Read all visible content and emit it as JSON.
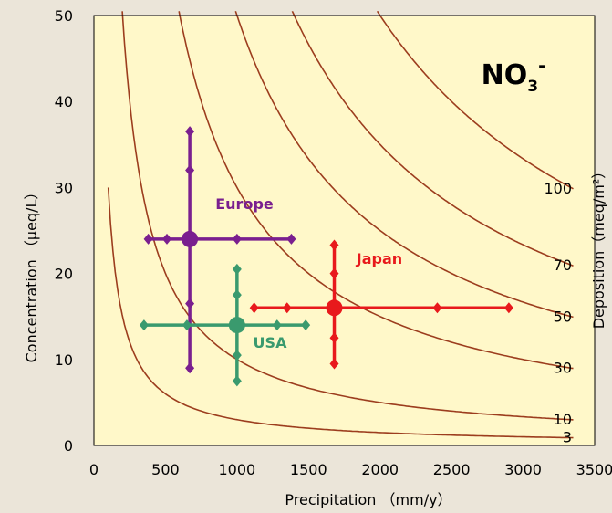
{
  "chart_data": {
    "type": "scatter",
    "title": "NO",
    "title_sub": "3",
    "title_sup": "-",
    "xlabel": "Precipitation （mm/y）",
    "ylabel": "Concentration （μeq/L）",
    "ylabel_right": "Deposition（meq/m²）",
    "xlim": [
      0,
      3500
    ],
    "ylim": [
      0,
      50
    ],
    "xticks": [
      "0",
      "500",
      "1000",
      "1500",
      "2000",
      "2500",
      "3000",
      "3500"
    ],
    "yticks": [
      "0",
      "10",
      "20",
      "30",
      "40",
      "50"
    ],
    "grid": false,
    "isolines": [
      {
        "label": "3",
        "deposition": 3
      },
      {
        "label": "10",
        "deposition": 10
      },
      {
        "label": "30",
        "deposition": 30
      },
      {
        "label": "50",
        "deposition": 50
      },
      {
        "label": "70",
        "deposition": 70
      },
      {
        "label": "100",
        "deposition": 100
      }
    ],
    "series": [
      {
        "name": "Europe",
        "color": "#7a1f8f",
        "center": {
          "x": 670,
          "y": 24
        },
        "x_values": [
          380,
          510,
          670,
          1000,
          1380
        ],
        "y_values": [
          9,
          16.5,
          24,
          32,
          36.5
        ]
      },
      {
        "name": "USA",
        "color": "#3a9a6e",
        "center": {
          "x": 1000,
          "y": 14
        },
        "x_values": [
          350,
          650,
          1000,
          1280,
          1480
        ],
        "y_values": [
          7.5,
          10.5,
          14,
          17.5,
          20.5
        ]
      },
      {
        "name": "Japan",
        "color": "#e8191c",
        "center": {
          "x": 1680,
          "y": 16
        },
        "x_values": [
          1120,
          1350,
          1680,
          2400,
          2900
        ],
        "y_values": [
          9.5,
          12.5,
          16,
          20,
          23.3
        ]
      }
    ],
    "colors": {
      "plot_background": "#fff8c9",
      "isoline": "#9c3d1e"
    }
  }
}
